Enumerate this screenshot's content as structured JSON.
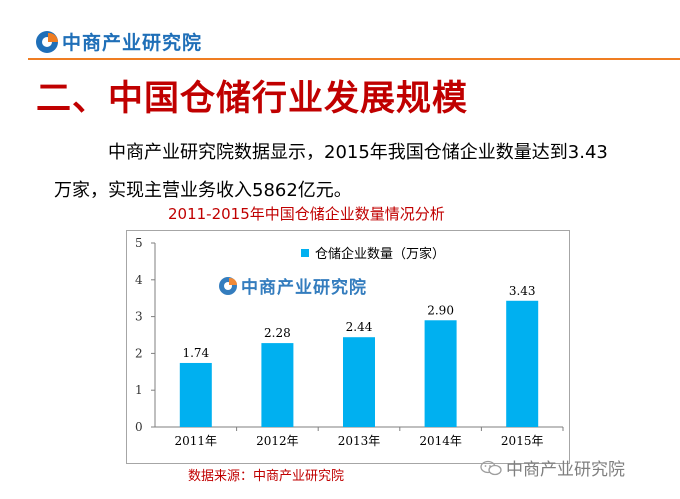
{
  "header": {
    "logo_text": "中商产业研究院",
    "logo_icon": "company-logo-icon"
  },
  "slide": {
    "title": "二、中国仓储行业发展规模",
    "body_line1": "中商产业研究院数据显示，2015年我国仓储企业数量达到3.43",
    "body_line2": "万家，实现主营业务收入5862亿元。"
  },
  "chart_watermark": {
    "text": "中商产业研究院"
  },
  "source_text": "数据来源：中商产业研究院",
  "bottom_watermark": {
    "text": "中商产业研究院",
    "icon": "wechat-icon"
  },
  "colors": {
    "bar": "#00b0f0",
    "title_red": "#c00000",
    "brand_blue": "#1f6fb8",
    "brand_orange": "#ef7d22"
  },
  "chart_data": {
    "type": "bar",
    "title": "2011-2015年中国仓储企业数量情况分析",
    "categories": [
      "2011年",
      "2012年",
      "2013年",
      "2014年",
      "2015年"
    ],
    "series": [
      {
        "name": "仓储企业数量（万家）",
        "values": [
          1.74,
          2.28,
          2.44,
          2.9,
          3.43
        ],
        "labels": [
          "1.74",
          "2.28",
          "2.44",
          "2.90",
          "3.43"
        ]
      }
    ],
    "ylim": [
      0,
      5
    ],
    "yticks": [
      "0",
      "1",
      "2",
      "3",
      "4",
      "5"
    ],
    "grid": false,
    "legend": "top-center"
  }
}
